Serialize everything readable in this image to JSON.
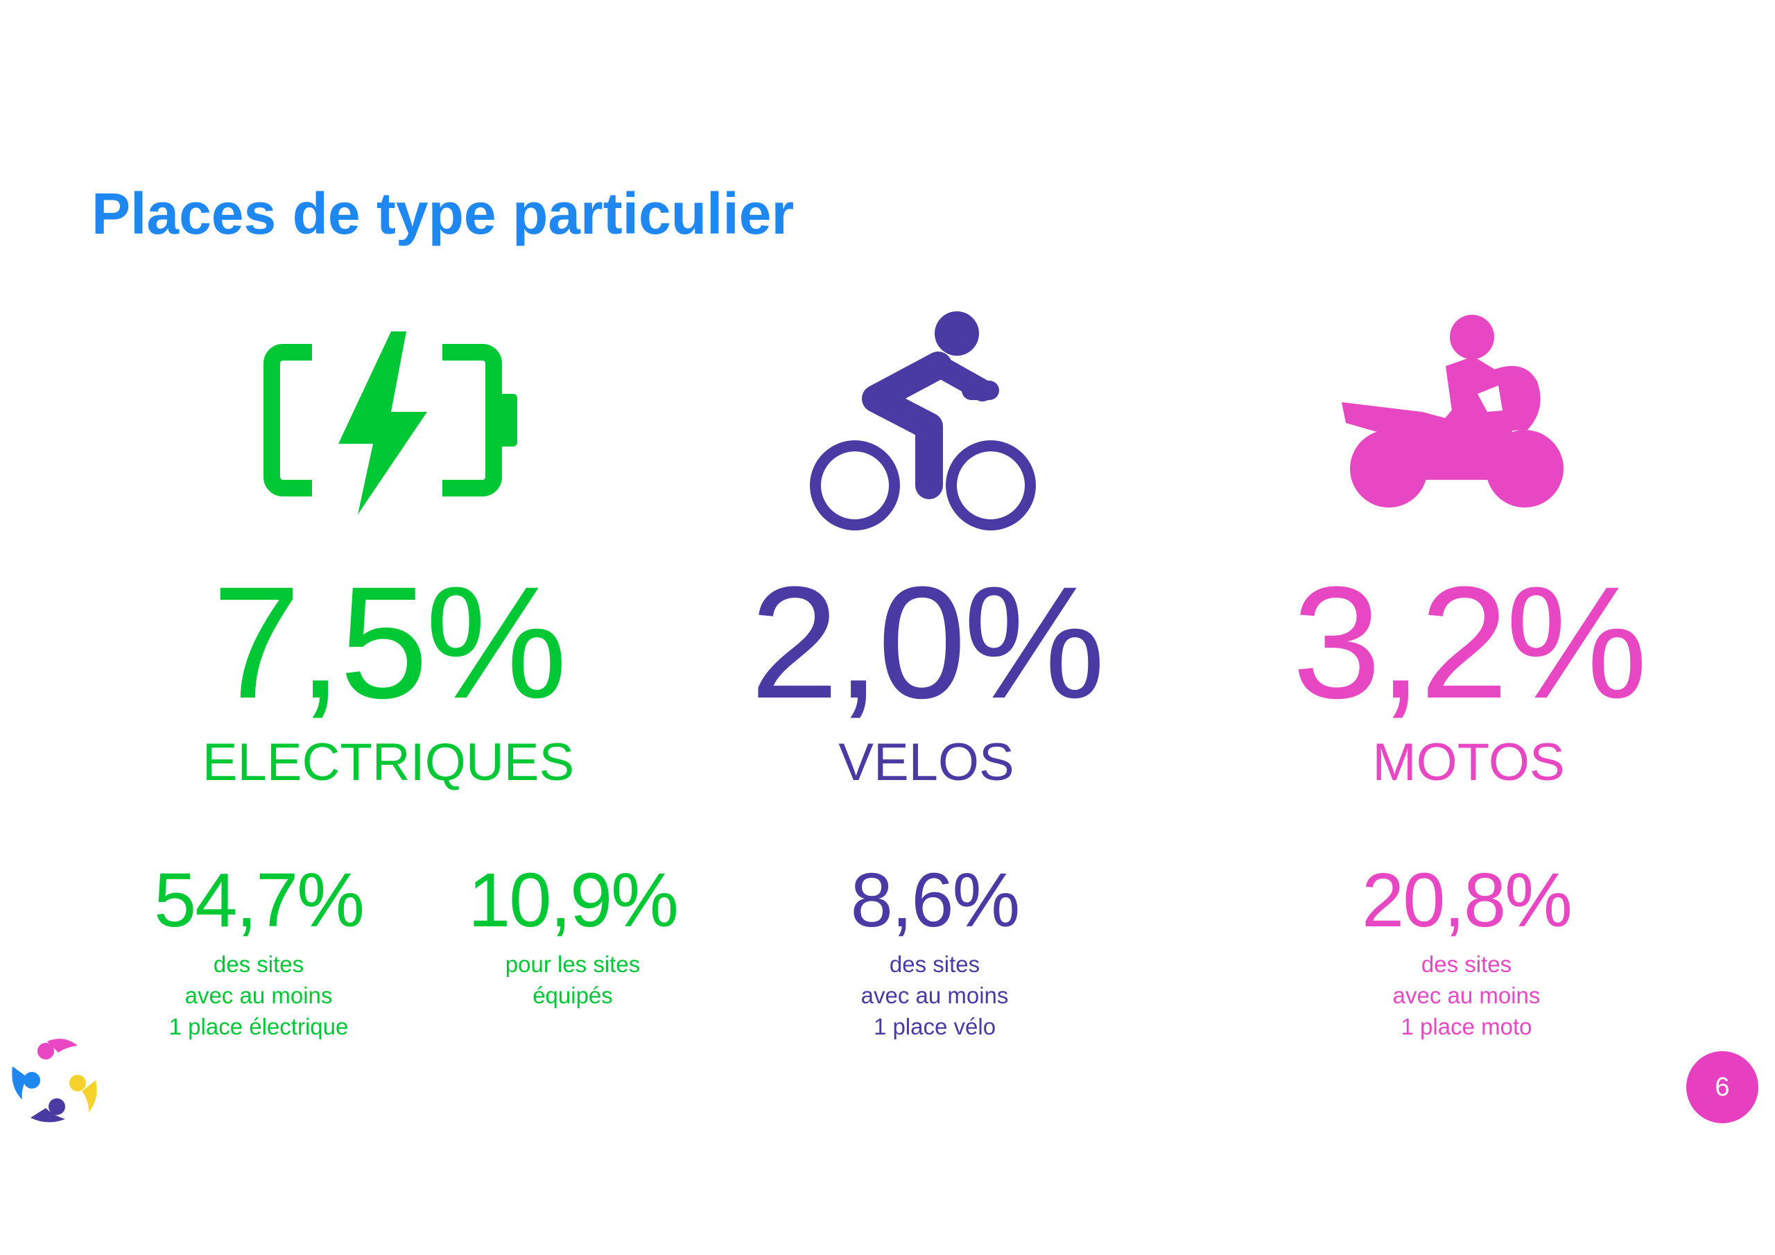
{
  "title": "Places de type particulier",
  "colors": {
    "title": "#1e88f0",
    "electric": "#00c834",
    "bike": "#4a3aa3",
    "moto": "#e847c4",
    "page_badge": "#e63fc0"
  },
  "electric": {
    "icon": "battery-charging-icon",
    "value": "7,5%",
    "label": "ELECTRIQUES",
    "stats": [
      {
        "value": "54,7%",
        "caption": "des sites\navec au moins\n1 place électrique"
      },
      {
        "value": "10,9%",
        "caption": "pour les sites\néquipés"
      }
    ]
  },
  "bike": {
    "icon": "bicycle-rider-icon",
    "value": "2,0%",
    "label": "VELOS",
    "stats": [
      {
        "value": "8,6%",
        "caption": "des sites\navec au moins\n1 place vélo"
      }
    ]
  },
  "moto": {
    "icon": "motorcycle-rider-icon",
    "value": "3,2%",
    "label": "MOTOS",
    "stats": [
      {
        "value": "20,8%",
        "caption": "des sites\navec au moins\n1 place moto"
      }
    ]
  },
  "page_number": "6"
}
